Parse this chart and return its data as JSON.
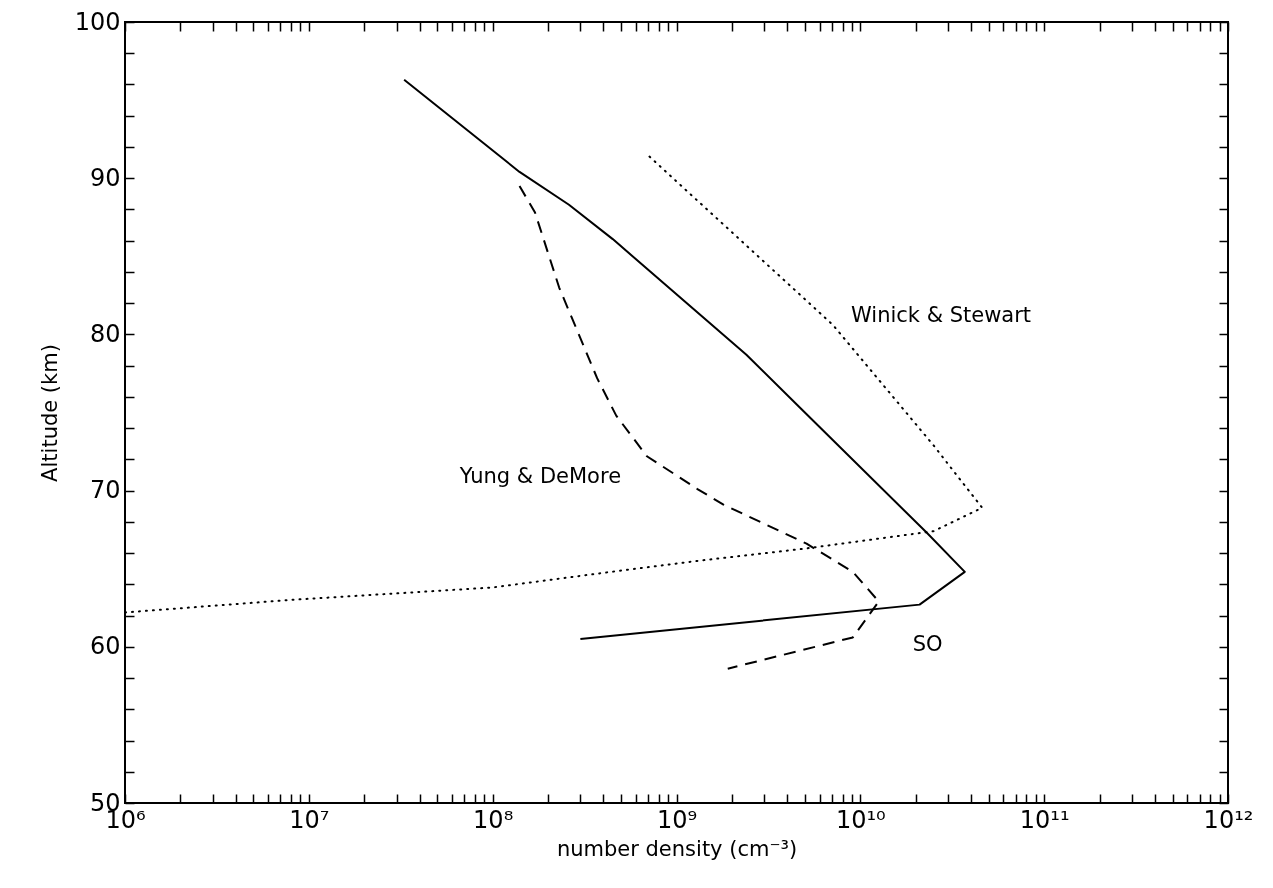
{
  "chart_data": {
    "type": "line",
    "xlabel": "number density (cm⁻³)",
    "ylabel": "Altitude (km)",
    "log": "x",
    "grid": false,
    "marker": "none",
    "xlim": [
      1000000.0,
      1000000000000.0
    ],
    "ylim": [
      50,
      100
    ],
    "xticks": [
      {
        "value": 1000000.0,
        "label": "10⁶"
      },
      {
        "value": 2000000.0,
        "label": null
      },
      {
        "value": 3000000.0,
        "label": null
      },
      {
        "value": 4000000.0,
        "label": null
      },
      {
        "value": 5000000.0,
        "label": null
      },
      {
        "value": 6000000.0,
        "label": null
      },
      {
        "value": 7000000.0,
        "label": null
      },
      {
        "value": 8000000.0,
        "label": null
      },
      {
        "value": 9000000.0,
        "label": null
      },
      {
        "value": 10000000.0,
        "label": "10⁷"
      },
      {
        "value": 20000000.0,
        "label": null
      },
      {
        "value": 30000000.0,
        "label": null
      },
      {
        "value": 40000000.0,
        "label": null
      },
      {
        "value": 50000000.0,
        "label": null
      },
      {
        "value": 60000000.0,
        "label": null
      },
      {
        "value": 70000000.0,
        "label": null
      },
      {
        "value": 80000000.0,
        "label": null
      },
      {
        "value": 90000000.0,
        "label": null
      },
      {
        "value": 100000000.0,
        "label": "10⁸"
      },
      {
        "value": 200000000.0,
        "label": null
      },
      {
        "value": 300000000.0,
        "label": null
      },
      {
        "value": 400000000.0,
        "label": null
      },
      {
        "value": 500000000.0,
        "label": null
      },
      {
        "value": 600000000.0,
        "label": null
      },
      {
        "value": 700000000.0,
        "label": null
      },
      {
        "value": 800000000.0,
        "label": null
      },
      {
        "value": 900000000.0,
        "label": null
      },
      {
        "value": 1000000000.0,
        "label": "10⁹"
      },
      {
        "value": 2000000000.0,
        "label": null
      },
      {
        "value": 3000000000.0,
        "label": null
      },
      {
        "value": 4000000000.0,
        "label": null
      },
      {
        "value": 5000000000.0,
        "label": null
      },
      {
        "value": 6000000000.0,
        "label": null
      },
      {
        "value": 7000000000.0,
        "label": null
      },
      {
        "value": 8000000000.0,
        "label": null
      },
      {
        "value": 9000000000.0,
        "label": null
      },
      {
        "value": 10000000000.0,
        "label": "10¹⁰"
      },
      {
        "value": 20000000000.0,
        "label": null
      },
      {
        "value": 30000000000.0,
        "label": null
      },
      {
        "value": 40000000000.0,
        "label": null
      },
      {
        "value": 50000000000.0,
        "label": null
      },
      {
        "value": 60000000000.0,
        "label": null
      },
      {
        "value": 70000000000.0,
        "label": null
      },
      {
        "value": 80000000000.0,
        "label": null
      },
      {
        "value": 90000000000.0,
        "label": null
      },
      {
        "value": 100000000000.0,
        "label": "10¹¹"
      },
      {
        "value": 200000000000.0,
        "label": null
      },
      {
        "value": 300000000000.0,
        "label": null
      },
      {
        "value": 400000000000.0,
        "label": null
      },
      {
        "value": 500000000000.0,
        "label": null
      },
      {
        "value": 600000000000.0,
        "label": null
      },
      {
        "value": 700000000000.0,
        "label": null
      },
      {
        "value": 800000000000.0,
        "label": null
      },
      {
        "value": 900000000000.0,
        "label": null
      },
      {
        "value": 1000000000000.0,
        "label": "10¹²"
      }
    ],
    "yticks": [
      50,
      {
        "value": 52,
        "label": null
      },
      {
        "value": 54,
        "label": null
      },
      {
        "value": 56,
        "label": null
      },
      {
        "value": 58,
        "label": null
      },
      60,
      {
        "value": 62,
        "label": null
      },
      {
        "value": 64,
        "label": null
      },
      {
        "value": 66,
        "label": null
      },
      {
        "value": 68,
        "label": null
      },
      70,
      {
        "value": 72,
        "label": null
      },
      {
        "value": 74,
        "label": null
      },
      {
        "value": 76,
        "label": null
      },
      {
        "value": 78,
        "label": null
      },
      80,
      {
        "value": 82,
        "label": null
      },
      {
        "value": 84,
        "label": null
      },
      {
        "value": 86,
        "label": null
      },
      {
        "value": 88,
        "label": null
      },
      90,
      {
        "value": 92,
        "label": null
      },
      {
        "value": 94,
        "label": null
      },
      {
        "value": 96,
        "label": null
      },
      {
        "value": 98,
        "label": null
      },
      100
    ],
    "series": [
      {
        "name": "SO",
        "color": "#000000",
        "line_style": "solid",
        "x": [
          33000000.0,
          140000000.0,
          260000000.0,
          450000000.0,
          2400000000.0,
          4700000000.0,
          23000000000.0,
          37000000000.0,
          21000000000.0,
          300000000.0
        ],
        "values": [
          96.3,
          90.4,
          88.3,
          86.1,
          78.7,
          75.3,
          67.3,
          64.8,
          62.7,
          60.5
        ]
      },
      {
        "name": "Yung & DeMore",
        "color": "#000000",
        "line_style": "dashed",
        "x": [
          140000000.0,
          170000000.0,
          230000000.0,
          370000000.0,
          470000000.0,
          690000000.0,
          1300000000.0,
          1800000000.0,
          5100000000.0,
          9100000000.0,
          12600000000.0,
          9100000000.0,
          1900000000.0
        ],
        "values": [
          89.5,
          87.8,
          83,
          77.2,
          74.8,
          72.2,
          70.1,
          69.1,
          66.6,
          64.8,
          62.9,
          60.6,
          58.6
        ]
      },
      {
        "name": "Winick & Stewart",
        "color": "#000000",
        "line_style": "dotted",
        "x": [
          1000000.0,
          7900000.0,
          100000000.0,
          380000000.0,
          1300000000.0,
          5100000000.0,
          25000000000.0,
          46000000000.0,
          25000000000.0,
          7100000000.0,
          710000000.0
        ],
        "values": [
          62.2,
          63.0,
          63.8,
          64.7,
          65.5,
          66.3,
          67.4,
          68.9,
          72.9,
          80.6,
          91.4
        ]
      }
    ]
  }
}
